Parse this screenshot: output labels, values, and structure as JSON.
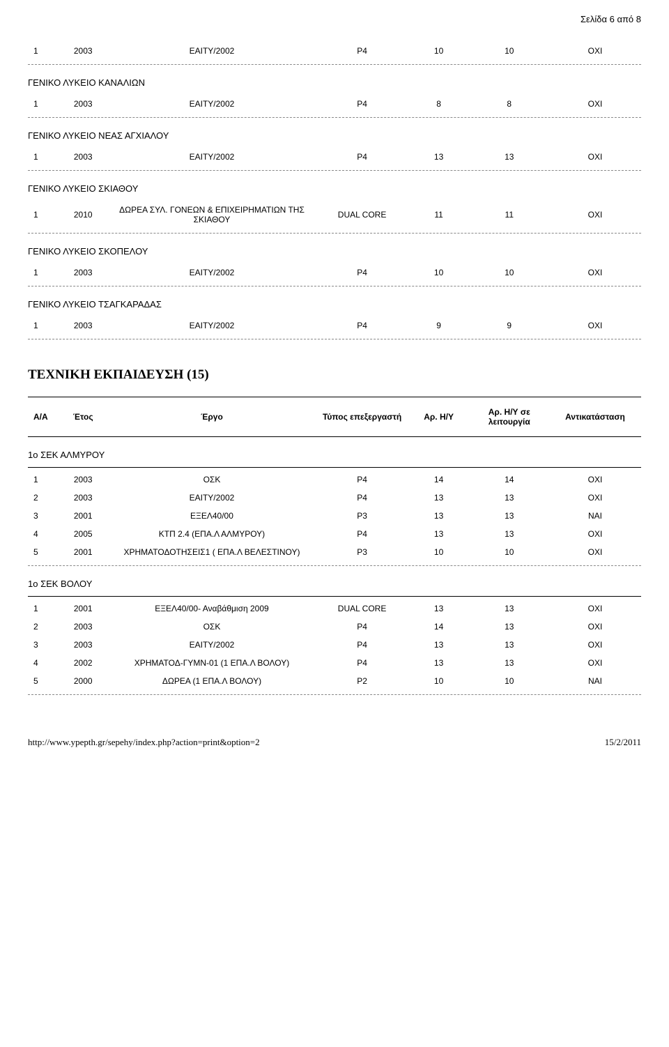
{
  "page_indicator": "Σελίδα 6 από 8",
  "sections": [
    {
      "title": "",
      "rows": [
        {
          "aa": "1",
          "year": "2003",
          "proj": "ΕΑΙΤΥ/2002",
          "cpu": "P4",
          "n1": "10",
          "n2": "10",
          "rep": "ΟΧΙ"
        }
      ]
    },
    {
      "title": "ΓΕΝΙΚΟ ΛΥΚΕΙΟ ΚΑΝΑΛΙΩΝ",
      "rows": [
        {
          "aa": "1",
          "year": "2003",
          "proj": "ΕΑΙΤΥ/2002",
          "cpu": "P4",
          "n1": "8",
          "n2": "8",
          "rep": "ΟΧΙ"
        }
      ]
    },
    {
      "title": "ΓΕΝΙΚΟ ΛΥΚΕΙΟ ΝΕΑΣ ΑΓΧΙΑΛΟΥ",
      "rows": [
        {
          "aa": "1",
          "year": "2003",
          "proj": "ΕΑΙΤΥ/2002",
          "cpu": "P4",
          "n1": "13",
          "n2": "13",
          "rep": "ΟΧΙ"
        }
      ]
    },
    {
      "title": "ΓΕΝΙΚΟ ΛΥΚΕΙΟ ΣΚΙΑΘΟΥ",
      "rows": [
        {
          "aa": "1",
          "year": "2010",
          "proj": "ΔΩΡΕΑ ΣΥΛ. ΓΟΝΕΩΝ & ΕΠΙΧΕΙΡΗΜΑΤΙΩΝ ΤΗΣ ΣΚΙΑΘΟΥ",
          "cpu": "DUAL CORE",
          "n1": "11",
          "n2": "11",
          "rep": "ΟΧΙ"
        }
      ]
    },
    {
      "title": "ΓΕΝΙΚΟ ΛΥΚΕΙΟ ΣΚΟΠΕΛΟΥ",
      "rows": [
        {
          "aa": "1",
          "year": "2003",
          "proj": "ΕΑΙΤΥ/2002",
          "cpu": "P4",
          "n1": "10",
          "n2": "10",
          "rep": "ΟΧΙ"
        }
      ]
    },
    {
      "title": "ΓΕΝΙΚΟ ΛΥΚΕΙΟ ΤΣΑΓΚΑΡΑΔΑΣ",
      "rows": [
        {
          "aa": "1",
          "year": "2003",
          "proj": "ΕΑΙΤΥ/2002",
          "cpu": "P4",
          "n1": "9",
          "n2": "9",
          "rep": "ΟΧΙ"
        }
      ]
    }
  ],
  "major_heading": "ΤΕΧΝΙΚΗ ΕΚΠΑΙΔΕΥΣΗ (15)",
  "header": {
    "aa": "Α/Α",
    "year": "Έτος",
    "proj": "Έργο",
    "cpu": "Τύπος επεξεργαστή",
    "n1": "Αρ. Η/Υ",
    "n2": "Αρ. Η/Υ σε λειτουργία",
    "rep": "Αντικατάσταση"
  },
  "tech_sections": [
    {
      "title": "1o ΣΕΚ ΑΛΜΥΡΟΥ",
      "rows": [
        {
          "aa": "1",
          "year": "2003",
          "proj": "ΟΣΚ",
          "cpu": "P4",
          "n1": "14",
          "n2": "14",
          "rep": "ΟΧΙ"
        },
        {
          "aa": "2",
          "year": "2003",
          "proj": "ΕΑΙΤΥ/2002",
          "cpu": "P4",
          "n1": "13",
          "n2": "13",
          "rep": "ΟΧΙ"
        },
        {
          "aa": "3",
          "year": "2001",
          "proj": "ΕΞΕΛ40/00",
          "cpu": "P3",
          "n1": "13",
          "n2": "13",
          "rep": "ΝΑΙ"
        },
        {
          "aa": "4",
          "year": "2005",
          "proj": "ΚΤΠ 2.4 (ΕΠΑ.Λ ΑΛΜΥΡΟΥ)",
          "cpu": "P4",
          "n1": "13",
          "n2": "13",
          "rep": "ΟΧΙ"
        },
        {
          "aa": "5",
          "year": "2001",
          "proj": "ΧΡΗΜΑΤΟΔΟΤΗΣΕΙΣ1 ( ΕΠΑ.Λ ΒΕΛΕΣΤΙΝΟΥ)",
          "cpu": "P3",
          "n1": "10",
          "n2": "10",
          "rep": "ΟΧΙ"
        }
      ]
    },
    {
      "title": "1o ΣΕΚ ΒΟΛΟΥ",
      "rows": [
        {
          "aa": "1",
          "year": "2001",
          "proj": "ΕΞΕΛ40/00- Αναβάθμιση 2009",
          "cpu": "DUAL CORE",
          "n1": "13",
          "n2": "13",
          "rep": "ΟΧΙ"
        },
        {
          "aa": "2",
          "year": "2003",
          "proj": "ΟΣΚ",
          "cpu": "P4",
          "n1": "14",
          "n2": "13",
          "rep": "ΟΧΙ"
        },
        {
          "aa": "3",
          "year": "2003",
          "proj": "ΕΑΙΤΥ/2002",
          "cpu": "P4",
          "n1": "13",
          "n2": "13",
          "rep": "ΟΧΙ"
        },
        {
          "aa": "4",
          "year": "2002",
          "proj": "ΧΡΗΜΑΤΟΔ-ΓΥΜΝ-01 (1 ΕΠΑ.Λ ΒΟΛΟΥ)",
          "cpu": "P4",
          "n1": "13",
          "n2": "13",
          "rep": "ΟΧΙ"
        },
        {
          "aa": "5",
          "year": "2000",
          "proj": "ΔΩΡΕΑ (1 ΕΠΑ.Λ ΒΟΛΟΥ)",
          "cpu": "P2",
          "n1": "10",
          "n2": "10",
          "rep": "ΝΑΙ"
        }
      ]
    }
  ],
  "footer": {
    "url": "http://www.ypepth.gr/sepehy/index.php?action=print&option=2",
    "date": "15/2/2011"
  }
}
